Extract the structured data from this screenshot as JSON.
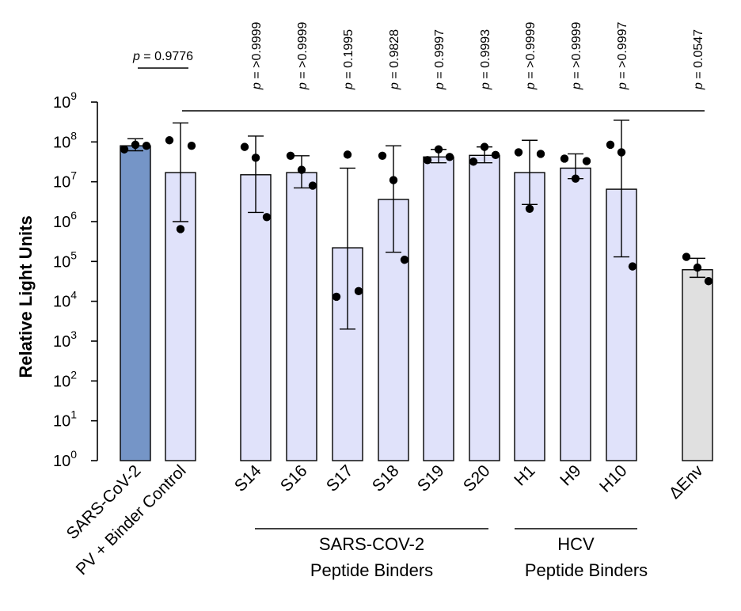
{
  "chart_data": {
    "type": "bar",
    "ylabel": "Relative Light Units",
    "yscale": "log",
    "ylim": [
      1,
      1000000000
    ],
    "y_ticks": [
      {
        "value": 1,
        "base": "10",
        "exp": "0"
      },
      {
        "value": 10,
        "base": "10",
        "exp": "1"
      },
      {
        "value": 100,
        "base": "10",
        "exp": "2"
      },
      {
        "value": 1000,
        "base": "10",
        "exp": "3"
      },
      {
        "value": 10000,
        "base": "10",
        "exp": "4"
      },
      {
        "value": 100000,
        "base": "10",
        "exp": "5"
      },
      {
        "value": 1000000,
        "base": "10",
        "exp": "6"
      },
      {
        "value": 10000000,
        "base": "10",
        "exp": "7"
      },
      {
        "value": 100000000,
        "base": "10",
        "exp": "8"
      },
      {
        "value": 1000000000,
        "base": "10",
        "exp": "9"
      }
    ],
    "grid": false,
    "colors": {
      "sars_cov_2": "#7595C7",
      "binders": "#E0E2FA",
      "delta_env": "#E0E0E0",
      "points": "#000000"
    },
    "categories": [
      {
        "label": "SARS-CoV-2",
        "value": 80000000,
        "err_low": 60000000,
        "err_high": 120000000,
        "points": [
          65000000,
          85000000,
          80000000
        ],
        "color": "sars_cov_2"
      },
      {
        "label": "PV + Binder Control",
        "value": 17000000,
        "err_low": 1000000,
        "err_high": 300000000,
        "points": [
          110000000,
          650000,
          80000000
        ],
        "color": "binders"
      },
      {
        "label": "S14",
        "value": 15000000,
        "err_low": 1700000,
        "err_high": 140000000,
        "points": [
          75000000,
          40000000,
          1300000
        ],
        "color": "binders"
      },
      {
        "label": "S16",
        "value": 17000000,
        "err_low": 7000000,
        "err_high": 45000000,
        "points": [
          45000000,
          20000000,
          8000000
        ],
        "color": "binders"
      },
      {
        "label": "S17",
        "value": 220000,
        "err_low": 2000,
        "err_high": 22000000,
        "points": [
          13000,
          48000000,
          18000
        ],
        "color": "binders"
      },
      {
        "label": "S18",
        "value": 3600000,
        "err_low": 170000,
        "err_high": 80000000,
        "points": [
          45000000,
          11000000,
          110000
        ],
        "color": "binders"
      },
      {
        "label": "S19",
        "value": 42000000,
        "err_low": 30000000,
        "err_high": 65000000,
        "points": [
          35000000,
          65000000,
          42000000
        ],
        "color": "binders"
      },
      {
        "label": "S20",
        "value": 46000000,
        "err_low": 30000000,
        "err_high": 75000000,
        "points": [
          32000000,
          75000000,
          47000000
        ],
        "color": "binders"
      },
      {
        "label": "H1",
        "value": 17000000,
        "err_low": 2700000,
        "err_high": 110000000,
        "points": [
          55000000,
          2100000,
          50000000
        ],
        "color": "binders"
      },
      {
        "label": "H9",
        "value": 22000000,
        "err_low": 12000000,
        "err_high": 50000000,
        "points": [
          38000000,
          12000000,
          33000000
        ],
        "color": "binders"
      },
      {
        "label": "H10",
        "value": 6500000,
        "err_low": 130000,
        "err_high": 350000000,
        "points": [
          85000000,
          55000000,
          75000
        ],
        "color": "binders"
      },
      {
        "label": "ΔEnv",
        "value": 62000,
        "err_low": 40000,
        "err_high": 120000,
        "points": [
          130000,
          70000,
          32000
        ],
        "color": "delta_env"
      }
    ],
    "annotations": {
      "pairwise": {
        "text": "p = 0.9776",
        "p_symbol": "p",
        "rest": " = 0.9776",
        "from": "SARS-CoV-2",
        "to": "PV + Binder Control"
      },
      "vs_control": [
        {
          "category": "S14",
          "p_symbol": "p",
          "rest": " = >0.9999"
        },
        {
          "category": "S16",
          "p_symbol": "p",
          "rest": " = >0.9999"
        },
        {
          "category": "S17",
          "p_symbol": "p",
          "rest": " = 0.1995"
        },
        {
          "category": "S18",
          "p_symbol": "p",
          "rest": " = 0.9828"
        },
        {
          "category": "S19",
          "p_symbol": "p",
          "rest": " = 0.9997"
        },
        {
          "category": "S20",
          "p_symbol": "p",
          "rest": " = 0.9993"
        },
        {
          "category": "H1",
          "p_symbol": "p",
          "rest": " = >0.9999"
        },
        {
          "category": "H9",
          "p_symbol": "p",
          "rest": " = >0.9999"
        },
        {
          "category": "H10",
          "p_symbol": "p",
          "rest": " = >0.9997"
        },
        {
          "category": "ΔEnv",
          "p_symbol": "p",
          "rest": " = 0.0547"
        }
      ]
    },
    "groups": [
      {
        "line1": "SARS-COV-2",
        "line2": "Peptide Binders",
        "from": "S14",
        "to": "S20"
      },
      {
        "line1": "HCV",
        "line2": "Peptide Binders",
        "from": "H1",
        "to": "H10"
      }
    ]
  }
}
